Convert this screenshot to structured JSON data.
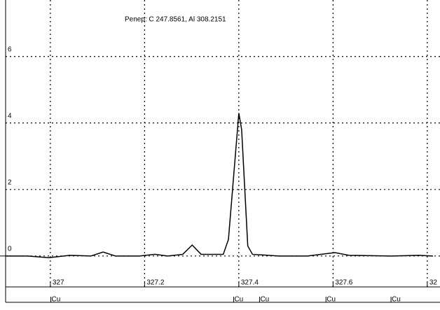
{
  "chart_data": {
    "type": "line",
    "title": "Penep: C  247.8561, Al  308.2151",
    "x": [
      326.905,
      326.952,
      326.997,
      327.041,
      327.086,
      327.112,
      327.138,
      327.189,
      327.222,
      327.249,
      327.281,
      327.301,
      327.32,
      327.367,
      327.378,
      327.4,
      327.406,
      327.419,
      327.429,
      327.486,
      327.545,
      327.604,
      327.634,
      327.723,
      327.782,
      327.812
    ],
    "series": [
      {
        "color": "#000000",
        "values": [
          0,
          0,
          -0.05,
          0.02,
          0,
          0.12,
          0,
          0,
          0.05,
          0,
          0.05,
          0.33,
          0.05,
          0.05,
          0.5,
          4.3,
          3.8,
          0.3,
          0.05,
          0,
          0,
          0.1,
          0.02,
          0,
          0.02,
          0
        ]
      }
    ],
    "xlim": [
      326.905,
      327.827
    ],
    "ylim": [
      -0.93,
      7.7
    ],
    "xticks": [
      327,
      327.2,
      327.4,
      327.6,
      {
        "value": 327.8,
        "label": "32"
      }
    ],
    "yticks": [
      0,
      2,
      4,
      6
    ],
    "grid": true,
    "markers": [
      {
        "x": 327.001,
        "label": "Cu"
      },
      {
        "x": 327.389,
        "label": "Cu"
      },
      {
        "x": 327.444,
        "label": "Cu"
      },
      {
        "x": 327.585,
        "label": "Cu"
      },
      {
        "x": 327.723,
        "label": "Cu"
      }
    ]
  }
}
